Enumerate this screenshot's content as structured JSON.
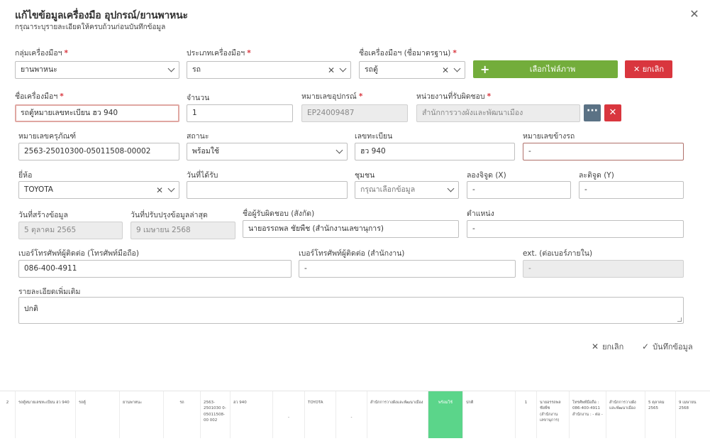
{
  "dialog": {
    "title": "แก้ไขข้อมูลเครื่องมือ อุปกรณ์/ยานพาหนะ",
    "subtitle": "กรุณาระบุรายละเอียดให้ครบถ้วนก่อนบันทึกข้อมูล",
    "close_icon": "close-icon"
  },
  "form": {
    "group_label": "กลุ่มเครื่องมือฯ",
    "group_value": "ยานพาหนะ",
    "type_label": "ประเภทเครื่องมือฯ",
    "type_value": "รถ",
    "std_name_label": "ชื่อเครื่องมือฯ (ชื่อมาตรฐาน)",
    "std_name_value": "รถตู้",
    "choose_image_label": "เลือกไฟล์ภาพ",
    "cancel_image_label": "ยกเลิก",
    "name_label": "ชื่อเครื่องมือฯ",
    "name_value": "รถตู้หมายเลขทะเบียน ฮว 940",
    "qty_label": "จำนวน",
    "qty_value": "1",
    "device_no_label": "หมายเลขอุปกรณ์",
    "device_no_value": "EP24009487",
    "unit_label": "หน่วยงานที่รับผิดชอบ",
    "unit_value": "สำนักการวางผังและพัฒนาเมือง",
    "asset_no_label": "หมายเลขครุภัณฑ์",
    "asset_no_value": "2563-25010300-05011508-00002",
    "status_label": "สถานะ",
    "status_value": "พร้อมใช้",
    "plate_label": "เลขทะเบียน",
    "plate_value": "ฮว 940",
    "side_no_label": "หมายเลขข้างรถ",
    "side_no_value": "-",
    "brand_label": "ยี่ห้อ",
    "brand_value": "TOYOTA",
    "received_label": "วันที่ได้รับ",
    "received_value": "",
    "community_label": "ชุมชน",
    "community_placeholder": "กรุณาเลือกข้อมูล",
    "lon_label": "ลองจิจูด (X)",
    "lon_value": "-",
    "lat_label": "ละติจูด (Y)",
    "lat_value": "-",
    "created_label": "วันที่สร้างข้อมูล",
    "created_value": "5 ตุลาคม 2565",
    "updated_label": "วันที่ปรับปรุงข้อมูลล่าสุด",
    "updated_value": "9 เมษายน 2568",
    "owner_label": "ชื่อผู้รับผิดชอบ (สังกัด)",
    "owner_value": "นายอรรถพล  ชัยพืช (สำนักงานเลขานุการ)",
    "position_label": "ตำแหน่ง",
    "position_value": "-",
    "mobile_label": "เบอร์โทรศัพท์ผู้ติดต่อ (โทรศัพท์มือถือ)",
    "mobile_value": "086-400-4911",
    "office_phone_label": "เบอร์โทรศัพท์ผู้ติดต่อ (สำนักงาน)",
    "office_phone_value": "-",
    "ext_label": "ext. (ต่อเบอร์ภายใน)",
    "ext_value": "-",
    "detail_label": "รายละเอียดเพิ่มเติม",
    "detail_value": "ปกติ",
    "required_mark": "*"
  },
  "footer": {
    "cancel_label": "ยกเลิก",
    "save_label": "บันทึกข้อมูล"
  },
  "background_row": {
    "index": "2",
    "name": "รถตู้หมายเลขทะเบียน ฮว 940",
    "std_name": "รถตู้",
    "group": "ยานพาหนะ",
    "type": "รถ",
    "asset_no": "2563-2501030 0-05011508-00 002",
    "plate": "ฮว 940",
    "side_no": "-",
    "brand": "TOYOTA",
    "dash": "-",
    "unit": "สำนักการวางผังและพัฒนาเมือง",
    "status": "พร้อมใช้",
    "detail": "ปกติ",
    "qty": "1",
    "owner": "นายอรรถพล ชัยพืช (สำนักงานเลขานุการ)",
    "phone": "โทรศัพท์มือถือ : 086-400-4911 สำนักงาน : - ต่อ -",
    "unit2": "สำนักการวางผังและพัฒนาเมือง",
    "created": "5 ตุลาคม 2565",
    "updated": "9 เมษายน 2568",
    "status_color": "#5bd58a"
  },
  "colors": {
    "primary_green": "#73ad3b",
    "danger_red": "#d9363e",
    "slate_button": "#5b7285"
  }
}
